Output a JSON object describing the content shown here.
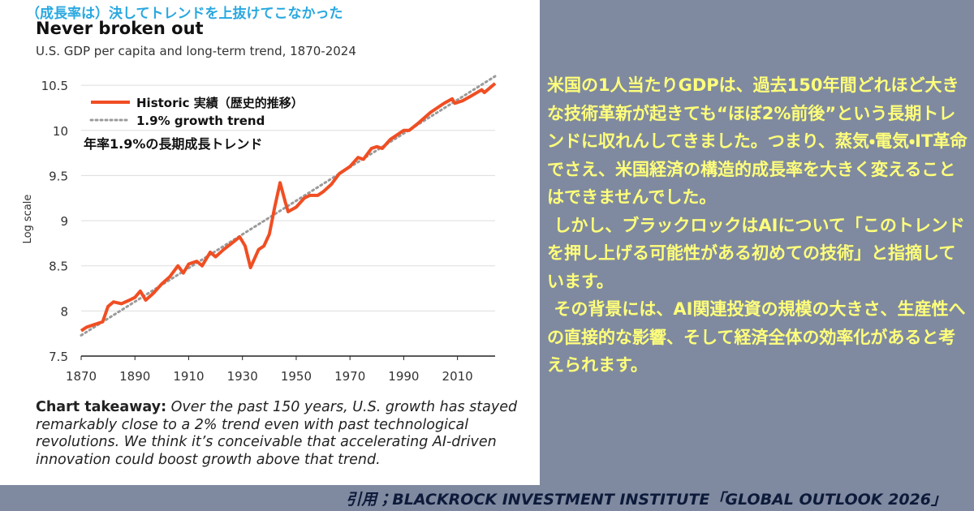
{
  "headline": "（成長率は）決してトレンドを上抜けてこなかった",
  "chart_data": {
    "type": "line",
    "title": "Never broken out",
    "subtitle": "U.S. GDP per capita and long-term trend, 1870-2024",
    "y_label": "Log scale",
    "annotation": "年率1.9%の長期成長トレンド",
    "xlim": [
      1870,
      2024
    ],
    "xticks": [
      1870,
      1890,
      1910,
      1930,
      1950,
      1970,
      1990,
      2010
    ],
    "ylim": [
      7.5,
      10.6
    ],
    "yticks": [
      7.5,
      8.0,
      8.5,
      9.0,
      9.5,
      10.0,
      10.5
    ],
    "grid": true,
    "series": [
      {
        "name": "Historic 実績（歴史的推移）",
        "color": "#f04e23",
        "style": "solid",
        "x": [
          1870,
          1872,
          1875,
          1878,
          1880,
          1882,
          1885,
          1888,
          1890,
          1892,
          1894,
          1897,
          1900,
          1903,
          1906,
          1908,
          1910,
          1913,
          1915,
          1918,
          1920,
          1923,
          1926,
          1929,
          1931,
          1933,
          1936,
          1938,
          1940,
          1942,
          1944,
          1946,
          1947,
          1950,
          1953,
          1955,
          1958,
          1960,
          1963,
          1966,
          1970,
          1973,
          1975,
          1978,
          1980,
          1982,
          1985,
          1990,
          1992,
          1995,
          2000,
          2005,
          2008,
          2009,
          2012,
          2015,
          2019,
          2020,
          2024
        ],
        "values": [
          7.78,
          7.82,
          7.85,
          7.88,
          8.05,
          8.1,
          8.08,
          8.12,
          8.15,
          8.22,
          8.12,
          8.2,
          8.3,
          8.38,
          8.5,
          8.42,
          8.52,
          8.55,
          8.5,
          8.65,
          8.6,
          8.68,
          8.75,
          8.82,
          8.72,
          8.48,
          8.68,
          8.72,
          8.85,
          9.15,
          9.42,
          9.2,
          9.1,
          9.15,
          9.25,
          9.28,
          9.28,
          9.32,
          9.4,
          9.52,
          9.6,
          9.7,
          9.68,
          9.8,
          9.82,
          9.8,
          9.9,
          10.0,
          10.0,
          10.07,
          10.2,
          10.3,
          10.35,
          10.3,
          10.33,
          10.38,
          10.45,
          10.42,
          10.52
        ]
      },
      {
        "name": "1.9% growth trend",
        "color": "#9a9a9a",
        "style": "dotted",
        "x": [
          1870,
          2024
        ],
        "values": [
          7.73,
          10.6
        ]
      }
    ],
    "takeaway_lead": "Chart takeaway:",
    "takeaway_text": "Over the past 150 years, U.S. growth has stayed remarkably close to a 2% trend even with past technological revolutions. We think it’s conceivable that accelerating AI-driven innovation could boost growth above that trend."
  },
  "commentary": [
    "米国の1人当たりGDPは、過去150年間どれほど大きな技術革新が起きても“ほぼ2%前後”という長期トレンドに収れんしてきました。つまり、蒸気・電気・IT革命でさえ、米国経済の構造的成長率を大きく変えることはできませんでした。",
    "しかし、ブラックロックはAIについて「このトレンドを押し上げる可能性がある初めての技術」と指摘しています。",
    "その背景には、AI関連投資の規模の大きさ、生産性への直接的な影響、そして経済全体の効率化があると考えられます。"
  ],
  "citation": "引用；BLACKROCK INVESTMENT INSTITUTE「GLOBAL OUTLOOK 2026」"
}
